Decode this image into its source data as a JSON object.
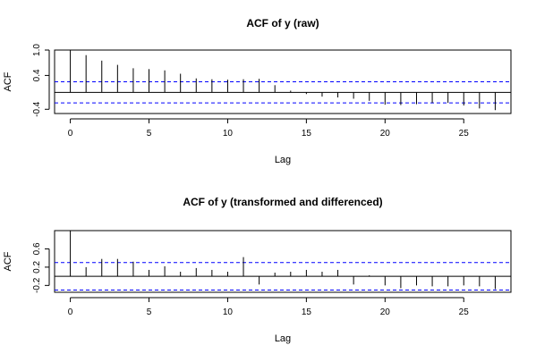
{
  "chart_data": [
    {
      "type": "bar",
      "title": "ACF of y (raw)",
      "xlabel": "Lag",
      "ylabel": "ACF",
      "xlim": [
        -1,
        28
      ],
      "ylim": [
        -0.5,
        1.0
      ],
      "x_ticks": [
        0,
        5,
        10,
        15,
        20,
        25
      ],
      "y_ticks": [
        -0.4,
        0.4,
        1.0
      ],
      "y_tick_labels": [
        "-0.4",
        "0.4",
        "1.0"
      ],
      "x": [
        0,
        1,
        2,
        3,
        4,
        5,
        6,
        7,
        8,
        9,
        10,
        11,
        12,
        13,
        14,
        15,
        16,
        17,
        18,
        19,
        20,
        21,
        22,
        23,
        24,
        25,
        26,
        27
      ],
      "values": [
        1.0,
        0.88,
        0.75,
        0.65,
        0.57,
        0.55,
        0.52,
        0.44,
        0.33,
        0.31,
        0.3,
        0.31,
        0.32,
        0.17,
        0.04,
        -0.04,
        -0.1,
        -0.12,
        -0.15,
        -0.2,
        -0.29,
        -0.3,
        -0.28,
        -0.25,
        -0.25,
        -0.31,
        -0.38,
        -0.42
      ],
      "confidence_bound": 0.25,
      "zero_line": true,
      "legend": "none"
    },
    {
      "type": "bar",
      "title": "ACF of y (transformed and differenced)",
      "xlabel": "Lag",
      "ylabel": "ACF",
      "xlim": [
        -1,
        28
      ],
      "ylim": [
        -0.35,
        1.0
      ],
      "x_ticks": [
        0,
        5,
        10,
        15,
        20,
        25
      ],
      "y_ticks": [
        -0.2,
        0.2,
        0.6
      ],
      "y_tick_labels": [
        "-0.2",
        "0.2",
        "0.6"
      ],
      "x": [
        0,
        1,
        2,
        3,
        4,
        5,
        6,
        7,
        8,
        9,
        10,
        11,
        12,
        13,
        14,
        15,
        16,
        17,
        18,
        19,
        20,
        21,
        22,
        23,
        24,
        25,
        26,
        27
      ],
      "values": [
        1.0,
        0.2,
        0.38,
        0.38,
        0.32,
        0.14,
        0.22,
        0.1,
        0.18,
        0.14,
        0.1,
        0.42,
        -0.18,
        0.08,
        0.1,
        0.14,
        0.1,
        0.14,
        -0.18,
        0.02,
        -0.2,
        -0.26,
        -0.2,
        -0.22,
        -0.22,
        -0.2,
        -0.22,
        -0.28
      ],
      "confidence_bound": 0.3,
      "zero_line": true,
      "legend": "none"
    }
  ],
  "colors": {
    "bar": "#000000",
    "confidence": "#0000ff",
    "axes": "#000000"
  }
}
